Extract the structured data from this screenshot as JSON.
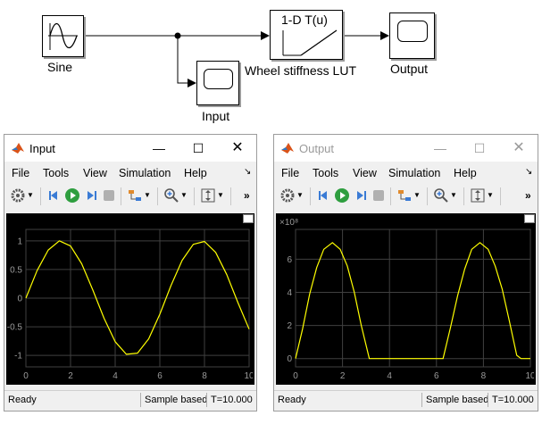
{
  "model": {
    "sine_label": "Sine",
    "lut_title": "1-D T(u)",
    "lut_label": "Wheel stiffness LUT",
    "input_scope_label": "Input",
    "output_scope_label": "Output"
  },
  "input_window": {
    "title": "Input",
    "menus": [
      "File",
      "Tools",
      "View",
      "Simulation",
      "Help"
    ],
    "status": {
      "ready": "Ready",
      "sample": "Sample based",
      "time": "T=10.000"
    },
    "colors": {
      "background": "#000000",
      "trace": "#ffff00",
      "grid": "#404040",
      "axis_text": "#9a9a9a"
    },
    "chart_data": {
      "type": "line",
      "title": "",
      "xlabel": "",
      "ylabel": "",
      "xlim": [
        0,
        10
      ],
      "ylim": [
        -1.2,
        1.2
      ],
      "x_ticks": [
        0,
        2,
        4,
        6,
        8,
        10
      ],
      "y_ticks": [
        -1,
        -0.5,
        0,
        0.5,
        1
      ],
      "x_tick_labels": [
        "0",
        "2",
        "4",
        "6",
        "8",
        "10"
      ],
      "y_tick_labels": [
        "-1",
        "-0.5",
        "0",
        "0.5",
        "1"
      ],
      "grid": true,
      "series": [
        {
          "x": [
            0,
            0.5,
            1,
            1.5,
            2,
            2.5,
            3,
            3.5,
            4,
            4.5,
            5,
            5.5,
            6,
            6.5,
            7,
            7.5,
            8,
            8.5,
            9,
            9.5,
            10
          ],
          "y": [
            0,
            0.48,
            0.84,
            1.0,
            0.91,
            0.6,
            0.14,
            -0.35,
            -0.76,
            -0.98,
            -0.96,
            -0.71,
            -0.28,
            0.22,
            0.66,
            0.94,
            0.99,
            0.8,
            0.41,
            -0.08,
            -0.54
          ]
        }
      ]
    }
  },
  "output_window": {
    "title": "Output",
    "menus": [
      "File",
      "Tools",
      "View",
      "Simulation",
      "Help"
    ],
    "status": {
      "ready": "Ready",
      "sample": "Sample based",
      "time": "T=10.000"
    },
    "colors": {
      "background": "#000000",
      "trace": "#ffff00",
      "grid": "#404040",
      "axis_text": "#9a9a9a"
    },
    "chart_data": {
      "type": "line",
      "title": "",
      "xlabel": "",
      "ylabel": "",
      "exponent_label": "×10⁸",
      "xlim": [
        0,
        10
      ],
      "ylim": [
        -0.5,
        7.8
      ],
      "x_ticks": [
        0,
        2,
        4,
        6,
        8,
        10
      ],
      "y_ticks": [
        0,
        2,
        4,
        6
      ],
      "x_tick_labels": [
        "0",
        "2",
        "4",
        "6",
        "8",
        "10"
      ],
      "y_tick_labels": [
        "0",
        "2",
        "4",
        "6"
      ],
      "grid": true,
      "series": [
        {
          "x": [
            0,
            0.3,
            0.6,
            0.9,
            1.2,
            1.57,
            1.9,
            2.2,
            2.5,
            2.8,
            3.14,
            3.3,
            4,
            5,
            6,
            6.28,
            6.6,
            6.9,
            7.2,
            7.5,
            7.85,
            8.2,
            8.5,
            8.8,
            9.1,
            9.42,
            9.6,
            10
          ],
          "y": [
            0,
            1.8,
            3.9,
            5.5,
            6.6,
            7.0,
            6.6,
            5.6,
            4.0,
            2.0,
            0,
            0,
            0,
            0,
            0,
            0,
            1.9,
            3.8,
            5.4,
            6.6,
            7.0,
            6.6,
            5.6,
            4.2,
            2.3,
            0.2,
            0,
            0
          ]
        }
      ]
    }
  }
}
